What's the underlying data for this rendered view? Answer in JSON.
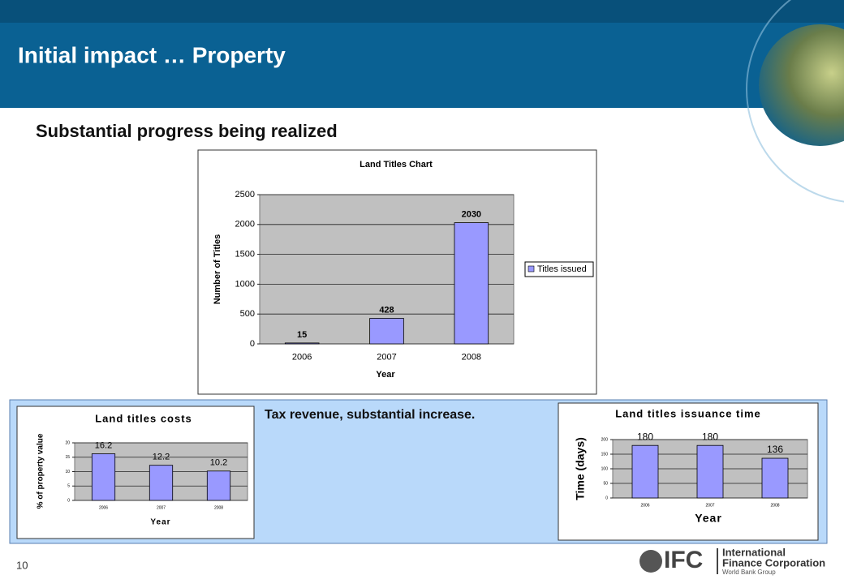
{
  "slide": {
    "title": "Initial impact … Property",
    "subtitle": "Substantial progress being realized",
    "note": "Tax revenue, substantial increase.",
    "page_number": "10",
    "logo": {
      "mark": "IFC",
      "line1": "International",
      "line2": "Finance Corporation",
      "group": "World Bank Group"
    }
  },
  "chart_data": [
    {
      "type": "bar",
      "title": "Land Titles Chart",
      "xlabel": "Year",
      "ylabel": "Number of Titles",
      "categories": [
        "2006",
        "2007",
        "2008"
      ],
      "series": [
        {
          "name": "Titles issued",
          "color": "#9999ff",
          "values": [
            15,
            428,
            2030
          ]
        }
      ],
      "ylim": [
        0,
        2500
      ],
      "yticks": [
        0,
        500,
        1000,
        1500,
        2000,
        2500
      ],
      "grid": true,
      "legend": "right"
    },
    {
      "type": "bar",
      "title": "Land titles costs",
      "xlabel": "Year",
      "ylabel": "% of property value",
      "categories": [
        "2006",
        "2007",
        "2008"
      ],
      "values": [
        16.2,
        12.2,
        10.2
      ],
      "color": "#9999ff",
      "ylim": [
        0,
        20
      ],
      "yticks": [
        0,
        5,
        10,
        15,
        20
      ],
      "grid": true
    },
    {
      "type": "bar",
      "title": "Land titles issuance time",
      "xlabel": "Year",
      "ylabel": "Time (days)",
      "categories": [
        "2006",
        "2007",
        "2008"
      ],
      "values": [
        180,
        180,
        136
      ],
      "color": "#9999ff",
      "ylim": [
        0,
        200
      ],
      "yticks": [
        0,
        50,
        100,
        150,
        200
      ],
      "grid": true
    }
  ]
}
